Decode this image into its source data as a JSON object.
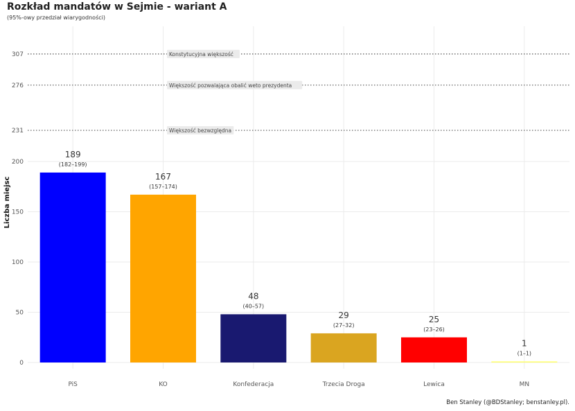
{
  "title": "Rozkład mandatów w Sejmie - wariant A",
  "subtitle": "(95%-owy przedział wiarygodności)",
  "caption": "Ben Stanley (@BDStanley; benstanley.pl).",
  "chart_data": {
    "type": "bar",
    "categories": [
      "PiS",
      "KO",
      "Konfederacja",
      "Trzecia Droga",
      "Lewica",
      "MN"
    ],
    "values": [
      189,
      167,
      48,
      29,
      25,
      1
    ],
    "intervals": [
      "(182–199)",
      "(157–174)",
      "(40–57)",
      "(27–32)",
      "(23–26)",
      "(1–1)"
    ],
    "colors": [
      "#0000ff",
      "#ffa500",
      "#191970",
      "#daa520",
      "#ff0000",
      "#ffff66"
    ],
    "ylabel": "Liczba miejsc",
    "xlabel": "",
    "yticks": [
      0,
      50,
      100,
      150,
      200,
      231,
      276,
      307
    ],
    "ylim": [
      0,
      320
    ],
    "grid": true,
    "reference_lines": [
      {
        "value": 307,
        "label": "Konstytucyjna większość"
      },
      {
        "value": 276,
        "label": "Większość pozwalająca obalić weto prezydenta"
      },
      {
        "value": 231,
        "label": "Większość bezwzględna"
      }
    ]
  }
}
